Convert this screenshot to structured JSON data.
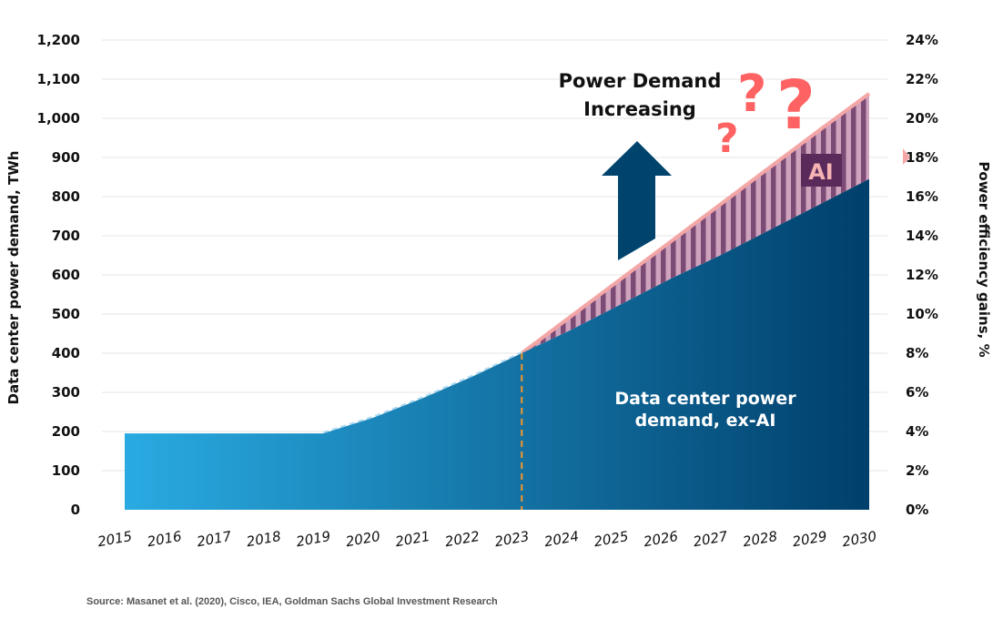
{
  "chart_data": {
    "type": "area",
    "title": "",
    "xlabel": "",
    "ylabel": "Data center power demand, TWh",
    "y2label": "Power efficiency gains, %",
    "ylim": [
      0,
      1200
    ],
    "y2lim": [
      0,
      24
    ],
    "grid": true,
    "categories": [
      "2015",
      "2016",
      "2017",
      "2018",
      "2019",
      "2020",
      "2021",
      "2022",
      "2023",
      "2024",
      "2025",
      "2026",
      "2027",
      "2028",
      "2029",
      "2030"
    ],
    "yticks": [
      "0",
      "100",
      "200",
      "300",
      "400",
      "500",
      "600",
      "700",
      "800",
      "900",
      "1,000",
      "1,100",
      "1,200"
    ],
    "y2ticks": [
      "0%",
      "2%",
      "4%",
      "6%",
      "8%",
      "10%",
      "12%",
      "14%",
      "16%",
      "18%",
      "20%",
      "22%",
      "24%"
    ],
    "series": [
      {
        "name": "Data center power demand, ex-AI",
        "values": [
          195,
          195,
          195,
          195,
          195,
          235,
          285,
          340,
          400,
          460,
          525,
          590,
          650,
          715,
          780,
          845
        ],
        "color_start": "#29abe2",
        "color_end": "#003f6b"
      },
      {
        "name": "AI",
        "values": [
          195,
          195,
          195,
          195,
          195,
          235,
          285,
          340,
          400,
          495,
          590,
          685,
          780,
          875,
          970,
          1063
        ],
        "color_stripe_dark": "#7b4a75",
        "color_stripe_light": "#cfa3bd",
        "edge_color": "#f4a6a6"
      }
    ],
    "forecast_start": "2023",
    "forecast_line_color": "#f0962e",
    "annotations": {
      "arrow_text": [
        "Power Demand",
        "Increasing"
      ],
      "arrow_color": "#00446e",
      "question_color": "#ff6262",
      "ai_label": "AI",
      "ai_label_bg": "#5a2a5a",
      "ai_label_color": "#f6b3b3",
      "area_label": [
        "Data center power",
        "demand, ex-AI"
      ]
    }
  },
  "source": "Source: Masanet et al. (2020), Cisco, IEA, Goldman Sachs Global Investment Research"
}
